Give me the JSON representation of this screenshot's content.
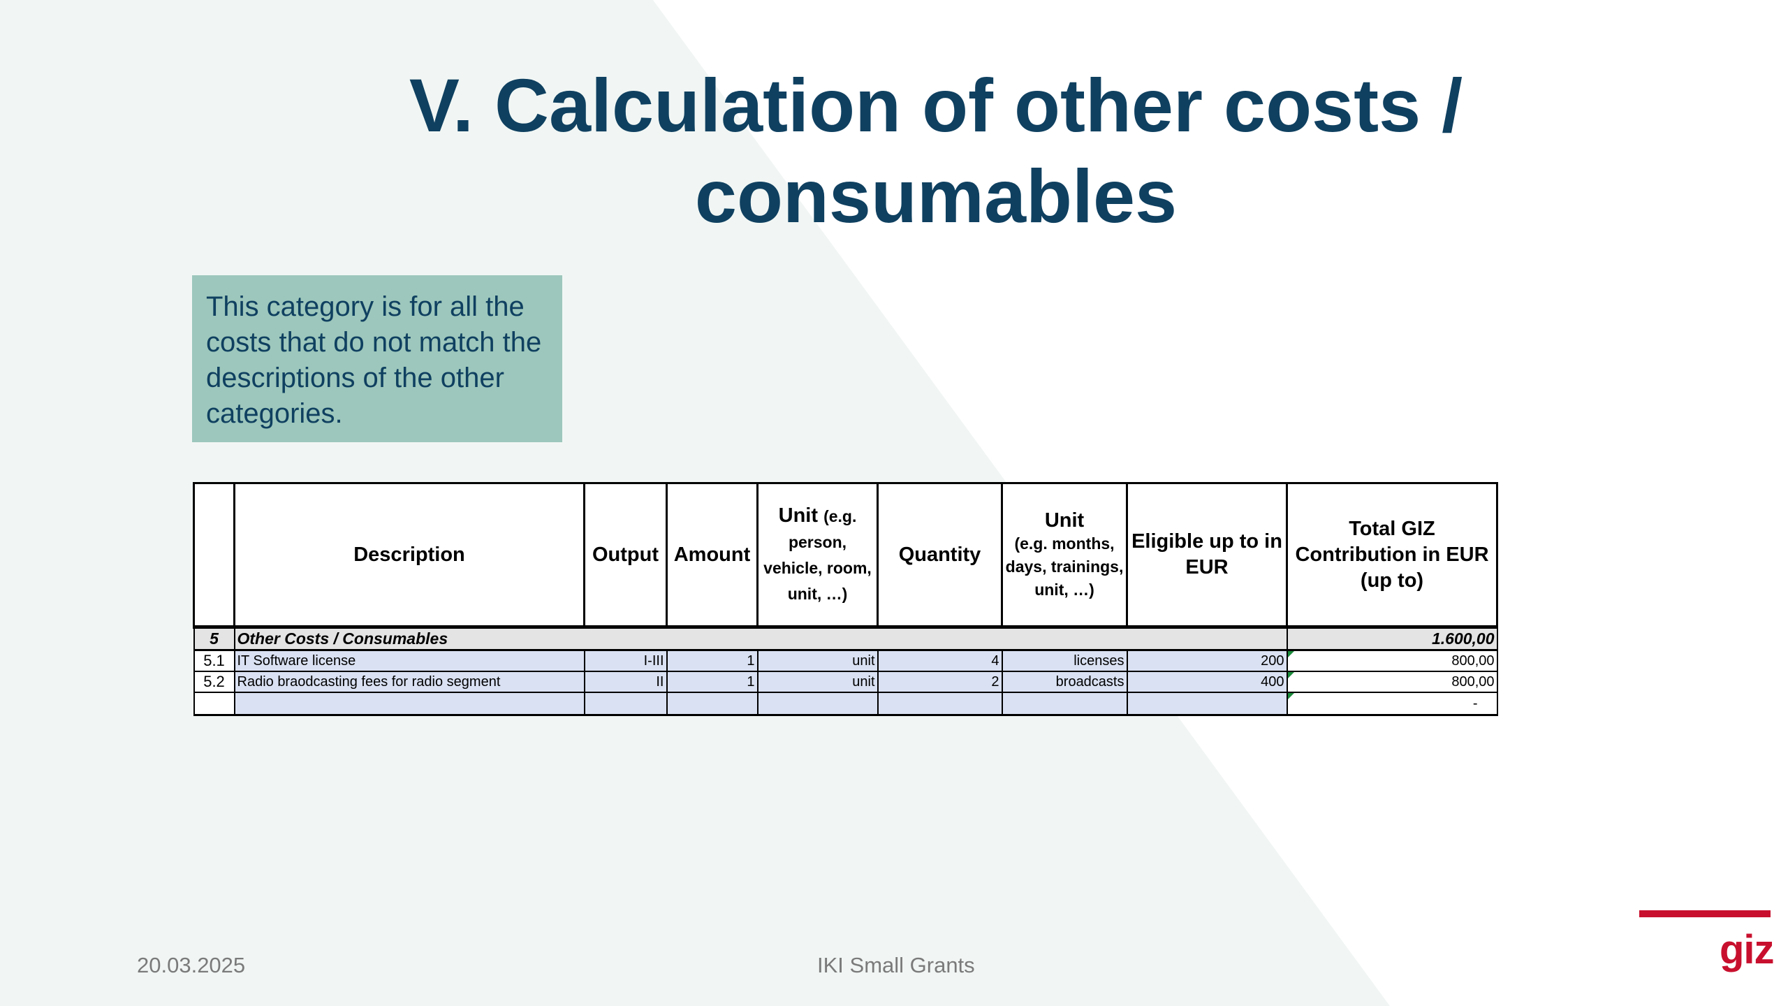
{
  "title": {
    "line1": "V. Calculation of other costs /",
    "line2": "consumables"
  },
  "info_box": {
    "text": "This category is for all the costs that do not match the descriptions of the other categories."
  },
  "table": {
    "headers": {
      "description": "Description",
      "output": "Output",
      "amount": "Amount",
      "unit_main": "Unit",
      "unit_sub": "(e.g. person, vehicle, room, unit, …)",
      "quantity": "Quantity",
      "unit2_main": "Unit",
      "unit2_sub": "(e.g. months, days, trainings, unit, …)",
      "eligible": "Eligible up to in EUR",
      "total": "Total GIZ Contribution in EUR (up to)"
    },
    "summary": {
      "number": "5",
      "label": "Other Costs / Consumables",
      "total": "1.600,00"
    },
    "rows": [
      {
        "number": "5.1",
        "description": "IT Software license",
        "output": "I-III",
        "amount": "1",
        "unit": "unit",
        "quantity": "4",
        "unit2": "licenses",
        "eligible": "200",
        "total": "800,00"
      },
      {
        "number": "5.2",
        "description": "Radio braodcasting fees for radio segment",
        "output": "II",
        "amount": "1",
        "unit": "unit",
        "quantity": "2",
        "unit2": "broadcasts",
        "eligible": "400",
        "total": "800,00"
      }
    ],
    "empty_total": "-"
  },
  "footer": {
    "date": "20.03.2025",
    "center": "IKI Small Grants"
  },
  "logo": {
    "text": "giz",
    "color": "#c8102e"
  },
  "colors": {
    "title": "#0f4060",
    "info_box_bg": "#9dc7bc",
    "background_shape": "#f1f6f4",
    "row_fill": "#d9e1f2"
  }
}
